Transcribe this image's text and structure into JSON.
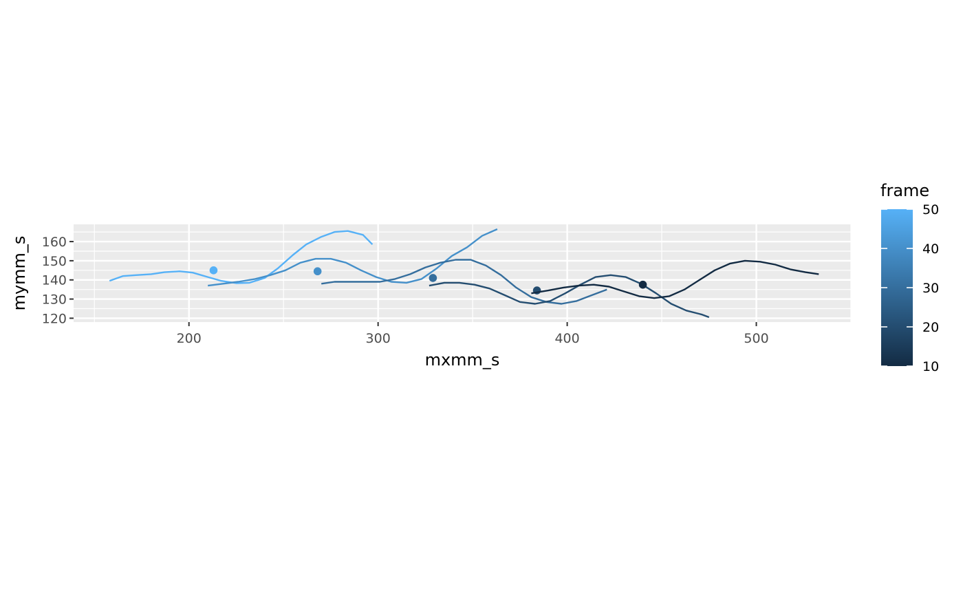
{
  "chart_data": {
    "type": "line",
    "xlabel": "mxmm_s",
    "ylabel": "mymm_s",
    "xlim": [
      139,
      550
    ],
    "ylim": [
      118,
      169
    ],
    "x_ticks": [
      200,
      300,
      400,
      500
    ],
    "x_tick_labels": [
      "200",
      "300",
      "400",
      "500"
    ],
    "y_ticks": [
      120,
      130,
      140,
      150,
      160
    ],
    "y_tick_labels": [
      "120",
      "130",
      "140",
      "150",
      "160"
    ],
    "grid": true,
    "legend": {
      "title": "frame",
      "type": "colorbar",
      "placement": "right",
      "range": [
        10,
        50
      ],
      "ticks": [
        10,
        20,
        30,
        40,
        50
      ],
      "tick_labels": [
        "10",
        "20",
        "30",
        "40",
        "50"
      ],
      "low_color": "#132B43",
      "high_color": "#56B1F7"
    },
    "series": [
      {
        "frame": 50,
        "line": [
          [
            158,
            139.5
          ],
          [
            165,
            142
          ],
          [
            172,
            142.5
          ],
          [
            180,
            143
          ],
          [
            187,
            144
          ],
          [
            195,
            144.5
          ],
          [
            202,
            143.8
          ],
          [
            210,
            141.5
          ],
          [
            217,
            139.5
          ],
          [
            225,
            138.3
          ],
          [
            232,
            138.5
          ],
          [
            240,
            141
          ],
          [
            247,
            146
          ],
          [
            255,
            153
          ],
          [
            262,
            158.5
          ],
          [
            270,
            162.5
          ],
          [
            277,
            165
          ],
          [
            284,
            165.5
          ],
          [
            292,
            163.5
          ],
          [
            297,
            158.5
          ]
        ],
        "point": [
          213,
          145
        ]
      },
      {
        "frame": 40,
        "line": [
          [
            210,
            137
          ],
          [
            218,
            138
          ],
          [
            226,
            139
          ],
          [
            235,
            140.5
          ],
          [
            243,
            142.5
          ],
          [
            251,
            145
          ],
          [
            259,
            149
          ],
          [
            267,
            151
          ],
          [
            275,
            151
          ],
          [
            283,
            149
          ],
          [
            291,
            145
          ],
          [
            299,
            141.5
          ],
          [
            307,
            139
          ],
          [
            315,
            138.5
          ],
          [
            323,
            140.5
          ],
          [
            331,
            146
          ],
          [
            339,
            152.5
          ],
          [
            347,
            157
          ],
          [
            355,
            163
          ],
          [
            363,
            166.5
          ]
        ],
        "point": [
          268,
          144.5
        ]
      },
      {
        "frame": 30,
        "line": [
          [
            270,
            138
          ],
          [
            277,
            139
          ],
          [
            285,
            139
          ],
          [
            293,
            139
          ],
          [
            301,
            139
          ],
          [
            309,
            140.5
          ],
          [
            317,
            143
          ],
          [
            325,
            146.5
          ],
          [
            333,
            149
          ],
          [
            341,
            150.5
          ],
          [
            349,
            150.5
          ],
          [
            357,
            147.5
          ],
          [
            365,
            142.5
          ],
          [
            373,
            136
          ],
          [
            381,
            131
          ],
          [
            389,
            128.5
          ],
          [
            397,
            127.5
          ],
          [
            405,
            129
          ],
          [
            413,
            132
          ],
          [
            421,
            135
          ]
        ],
        "point": [
          329,
          141
        ]
      },
      {
        "frame": 20,
        "line": [
          [
            327,
            137
          ],
          [
            335,
            138.5
          ],
          [
            343,
            138.5
          ],
          [
            351,
            137.5
          ],
          [
            359,
            135.5
          ],
          [
            367,
            132
          ],
          [
            375,
            128.5
          ],
          [
            383,
            127.5
          ],
          [
            391,
            129
          ],
          [
            399,
            133
          ],
          [
            407,
            137.5
          ],
          [
            415,
            141.5
          ],
          [
            423,
            142.5
          ],
          [
            431,
            141.5
          ],
          [
            439,
            138
          ],
          [
            447,
            133
          ],
          [
            455,
            127.5
          ],
          [
            463,
            124
          ],
          [
            471,
            122
          ],
          [
            475,
            120.5
          ]
        ],
        "point": [
          384,
          134.5
        ]
      },
      {
        "frame": 10,
        "line": [
          [
            381,
            133
          ],
          [
            390,
            134.5
          ],
          [
            398,
            136
          ],
          [
            406,
            137
          ],
          [
            414,
            137.5
          ],
          [
            422,
            136.5
          ],
          [
            430,
            134
          ],
          [
            438,
            131.5
          ],
          [
            446,
            130.5
          ],
          [
            454,
            131.5
          ],
          [
            462,
            135
          ],
          [
            470,
            140
          ],
          [
            478,
            145
          ],
          [
            486,
            148.5
          ],
          [
            494,
            150
          ],
          [
            502,
            149.5
          ],
          [
            510,
            148
          ],
          [
            518,
            145.5
          ],
          [
            526,
            144
          ],
          [
            533,
            143
          ]
        ],
        "point": [
          440,
          137.5
        ]
      }
    ]
  }
}
